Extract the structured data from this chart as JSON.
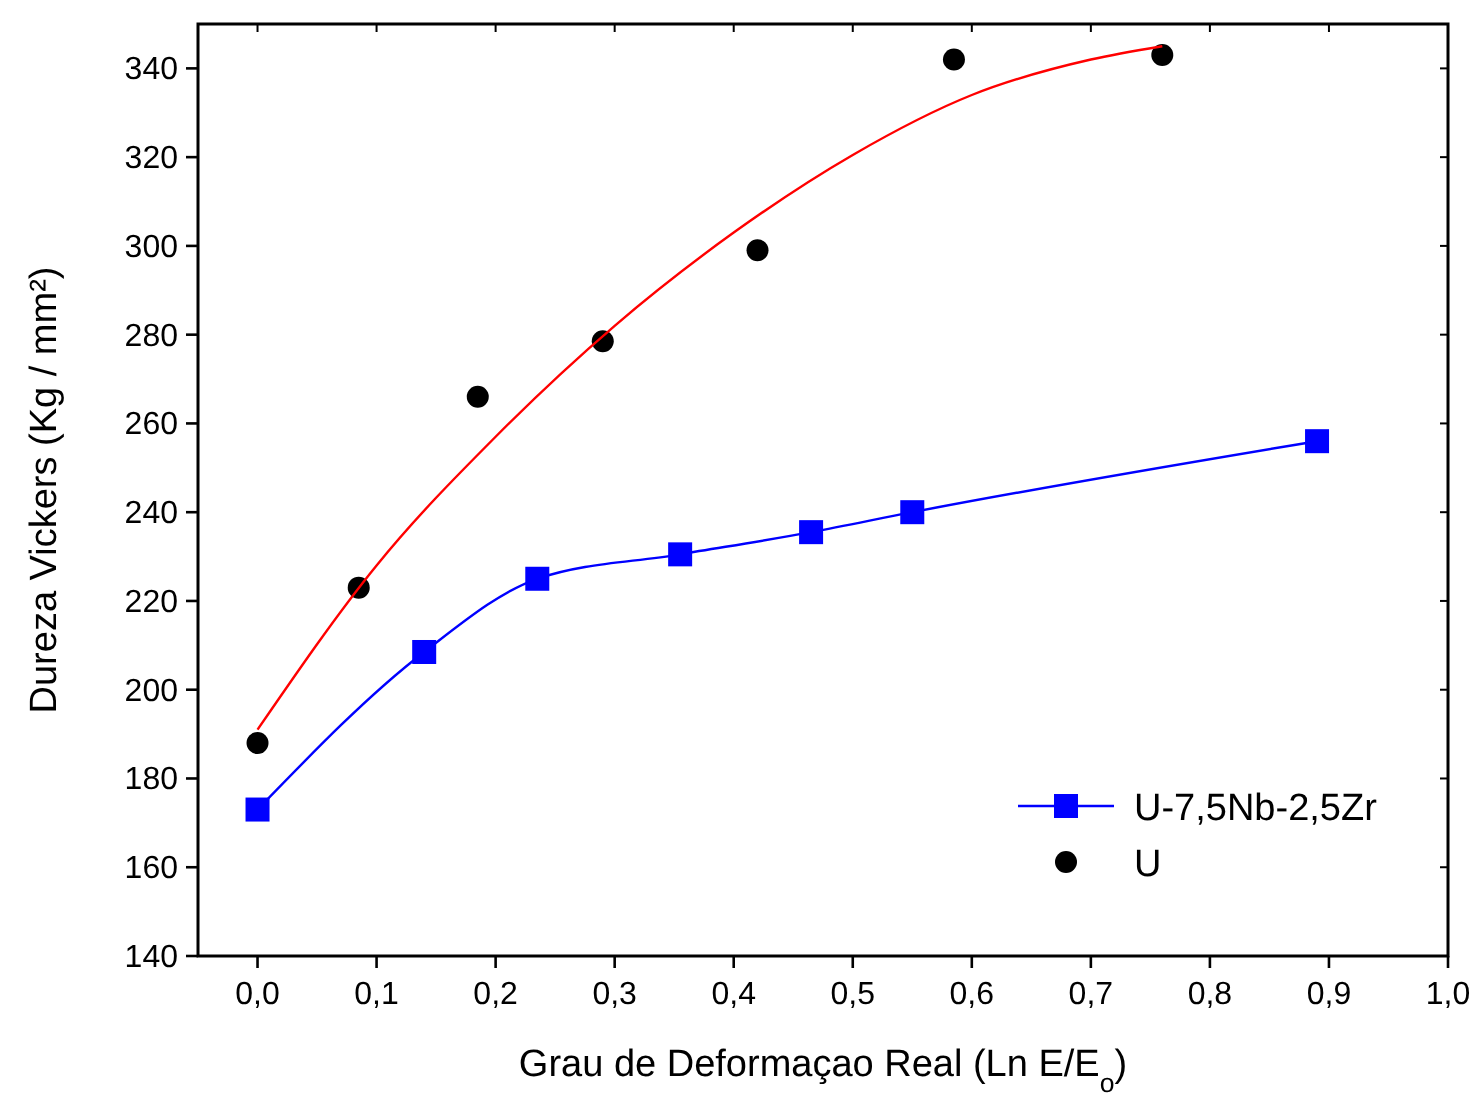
{
  "chart_data": {
    "type": "scatter",
    "xlabel": "Grau de Deformaçao Real (Ln E/E$_{o}$)",
    "ylabel": "Dureza Vickers (Kg / mm²)",
    "xlim": [
      -0.05,
      1.0
    ],
    "ylim": [
      140,
      350
    ],
    "xticks": [
      {
        "value": 0,
        "label": "0,0"
      },
      {
        "value": 0.1,
        "label": "0,1"
      },
      {
        "value": 0.2,
        "label": "0,2"
      },
      {
        "value": 0.3,
        "label": "0,3"
      },
      {
        "value": 0.4,
        "label": "0,4"
      },
      {
        "value": 0.5,
        "label": "0,5"
      },
      {
        "value": 0.6,
        "label": "0,6"
      },
      {
        "value": 0.7,
        "label": "0,7"
      },
      {
        "value": 0.8,
        "label": "0,8"
      },
      {
        "value": 0.9,
        "label": "0,9"
      },
      {
        "value": 1.0,
        "label": "1,0"
      }
    ],
    "yticks": [
      140,
      160,
      180,
      200,
      220,
      240,
      260,
      280,
      300,
      320,
      340
    ],
    "grid": false,
    "legend": "bottom right",
    "series": [
      {
        "type": "line",
        "name": "U-7,5Nb-2,5Zr",
        "color": "#0000ff",
        "marker": "square",
        "line_style": "solid",
        "x": [
          0,
          0.14,
          0.235,
          0.355,
          0.465,
          0.55,
          0.89
        ],
        "values": [
          173,
          208.5,
          225,
          230.5,
          235.5,
          240,
          256
        ]
      },
      {
        "name": "U",
        "color": "#000000",
        "marker": "circle",
        "x": [
          0,
          0.085,
          0.185,
          0.29,
          0.42,
          0.585,
          0.76
        ],
        "values": [
          188,
          223,
          266,
          278.5,
          299,
          342,
          343
        ]
      },
      {
        "type": "line",
        "color": "#ff0000",
        "marker": "none",
        "line_style": "solid",
        "x": [
          0,
          0.1,
          0.2,
          0.3,
          0.4,
          0.5,
          0.6,
          0.7,
          0.76
        ],
        "values": [
          191,
          228,
          257,
          282,
          303,
          320.5,
          334,
          342,
          345
        ]
      }
    ]
  }
}
